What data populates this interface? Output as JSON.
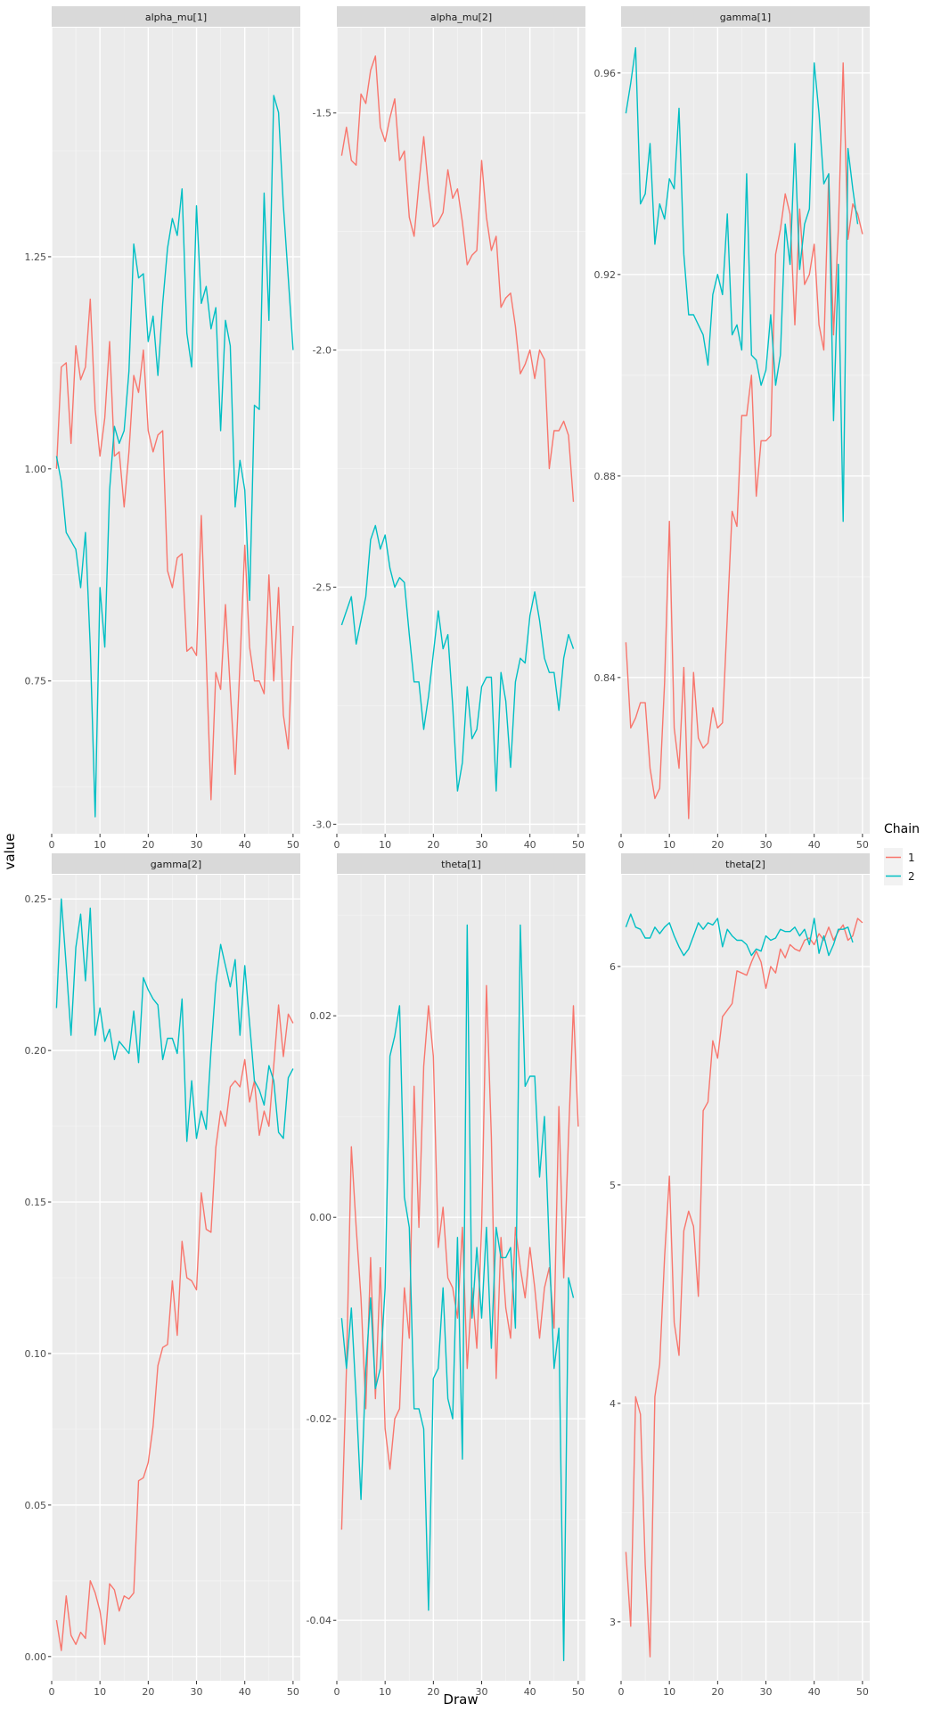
{
  "chart_data": {
    "type": "line",
    "layout": "facet grid, 2 rows x 3 columns, free y scales",
    "xlabel": "Draw",
    "ylabel": "value",
    "xlim": [
      1,
      50
    ],
    "x_ticks": [
      0,
      10,
      20,
      30,
      40,
      50
    ],
    "legend": {
      "title": "Chain",
      "position": "right",
      "entries": [
        "1",
        "2"
      ]
    },
    "series_colors": {
      "1": "#F8766D",
      "2": "#00BFC4"
    },
    "panel_background": "#EBEBEB",
    "strip_background": "#D9D9D9",
    "grid": true,
    "panels": [
      {
        "title": "alpha_mu[1]",
        "ylim": [
          0.57,
          1.52
        ],
        "y_ticks": [
          0.75,
          1.0,
          1.25
        ],
        "y_tick_labels": [
          "0.75",
          "1.00",
          "1.25"
        ],
        "series": [
          {
            "name": "1",
            "values": [
              1.0,
              1.12,
              1.125,
              1.03,
              1.145,
              1.105,
              1.12,
              1.2,
              1.07,
              1.015,
              1.06,
              1.15,
              1.015,
              1.02,
              0.955,
              1.02,
              1.11,
              1.09,
              1.14,
              1.045,
              1.02,
              1.04,
              1.045,
              0.88,
              0.86,
              0.895,
              0.9,
              0.785,
              0.79,
              0.78,
              0.945,
              0.78,
              0.61,
              0.76,
              0.74,
              0.84,
              0.74,
              0.64,
              0.77,
              0.91,
              0.79,
              0.75,
              0.75,
              0.735,
              0.875,
              0.75,
              0.86,
              0.71,
              0.67,
              0.815
            ]
          },
          {
            "name": "2",
            "values": [
              1.015,
              0.985,
              0.925,
              0.915,
              0.905,
              0.86,
              0.925,
              0.79,
              0.59,
              0.86,
              0.79,
              0.975,
              1.05,
              1.03,
              1.045,
              1.115,
              1.265,
              1.225,
              1.23,
              1.15,
              1.18,
              1.11,
              1.195,
              1.26,
              1.295,
              1.275,
              1.33,
              1.16,
              1.12,
              1.31,
              1.195,
              1.215,
              1.165,
              1.19,
              1.045,
              1.175,
              1.145,
              0.955,
              1.01,
              0.975,
              0.845,
              1.075,
              1.07,
              1.325,
              1.175,
              1.44,
              1.42,
              1.31,
              1.225,
              1.14
            ]
          }
        ]
      },
      {
        "title": "alpha_mu[2]",
        "ylim": [
          -3.02,
          -1.32
        ],
        "y_ticks": [
          -3.0,
          -2.5,
          -2.0,
          -1.5
        ],
        "y_tick_labels": [
          "-3.0",
          "-2.5",
          "-2.0",
          "-1.5"
        ],
        "series": [
          {
            "name": "1",
            "values": [
              -1.59,
              -1.53,
              -1.6,
              -1.61,
              -1.46,
              -1.48,
              -1.41,
              -1.38,
              -1.53,
              -1.56,
              -1.51,
              -1.47,
              -1.6,
              -1.58,
              -1.72,
              -1.76,
              -1.65,
              -1.55,
              -1.66,
              -1.74,
              -1.73,
              -1.71,
              -1.62,
              -1.68,
              -1.66,
              -1.73,
              -1.82,
              -1.8,
              -1.79,
              -1.6,
              -1.72,
              -1.79,
              -1.76,
              -1.91,
              -1.89,
              -1.88,
              -1.95,
              -2.05,
              -2.03,
              -2.0,
              -2.06,
              -2.0,
              -2.02,
              -2.25,
              -2.17,
              -2.17,
              -2.15,
              -2.18,
              -2.32
            ]
          },
          {
            "name": "2",
            "values": [
              -2.58,
              -2.55,
              -2.52,
              -2.62,
              -2.57,
              -2.52,
              -2.4,
              -2.37,
              -2.42,
              -2.39,
              -2.46,
              -2.5,
              -2.48,
              -2.49,
              -2.6,
              -2.7,
              -2.7,
              -2.8,
              -2.73,
              -2.64,
              -2.55,
              -2.63,
              -2.6,
              -2.75,
              -2.93,
              -2.87,
              -2.71,
              -2.82,
              -2.8,
              -2.71,
              -2.69,
              -2.69,
              -2.93,
              -2.68,
              -2.74,
              -2.88,
              -2.7,
              -2.65,
              -2.66,
              -2.56,
              -2.51,
              -2.57,
              -2.65,
              -2.68,
              -2.68,
              -2.76,
              -2.65,
              -2.6,
              -2.63
            ]
          }
        ]
      },
      {
        "title": "gamma[1]",
        "ylim": [
          0.809,
          0.969
        ],
        "y_ticks": [
          0.84,
          0.88,
          0.92,
          0.96
        ],
        "y_tick_labels": [
          "0.84",
          "0.88",
          "0.92",
          "0.96"
        ],
        "series": [
          {
            "name": "1",
            "values": [
              0.847,
              0.83,
              0.832,
              0.835,
              0.835,
              0.822,
              0.816,
              0.818,
              0.839,
              0.871,
              0.83,
              0.822,
              0.842,
              0.812,
              0.841,
              0.828,
              0.826,
              0.827,
              0.834,
              0.83,
              0.831,
              0.852,
              0.873,
              0.87,
              0.892,
              0.892,
              0.9,
              0.876,
              0.887,
              0.887,
              0.888,
              0.924,
              0.929,
              0.936,
              0.932,
              0.91,
              0.933,
              0.918,
              0.92,
              0.926,
              0.91,
              0.905,
              0.94,
              0.908,
              0.929,
              0.962,
              0.927,
              0.934,
              0.932,
              0.928
            ]
          },
          {
            "name": "2",
            "values": [
              0.952,
              0.958,
              0.965,
              0.934,
              0.936,
              0.946,
              0.926,
              0.934,
              0.931,
              0.939,
              0.937,
              0.953,
              0.924,
              0.912,
              0.912,
              0.91,
              0.908,
              0.902,
              0.916,
              0.92,
              0.916,
              0.932,
              0.908,
              0.91,
              0.905,
              0.94,
              0.904,
              0.903,
              0.898,
              0.901,
              0.912,
              0.898,
              0.904,
              0.93,
              0.922,
              0.946,
              0.921,
              0.93,
              0.933,
              0.962,
              0.952,
              0.938,
              0.94,
              0.891,
              0.922,
              0.871,
              0.945,
              0.937,
              0.93
            ]
          }
        ]
      },
      {
        "title": "gamma[2]",
        "ylim": [
          -0.008,
          0.258
        ],
        "y_ticks": [
          0.0,
          0.05,
          0.1,
          0.15,
          0.2,
          0.25
        ],
        "y_tick_labels": [
          "0.00",
          "0.05",
          "0.10",
          "0.15",
          "0.20",
          "0.25"
        ],
        "series": [
          {
            "name": "1",
            "values": [
              0.012,
              0.002,
              0.02,
              0.007,
              0.004,
              0.008,
              0.006,
              0.025,
              0.021,
              0.015,
              0.004,
              0.024,
              0.022,
              0.015,
              0.02,
              0.019,
              0.021,
              0.058,
              0.059,
              0.064,
              0.076,
              0.096,
              0.102,
              0.103,
              0.124,
              0.106,
              0.137,
              0.125,
              0.124,
              0.121,
              0.153,
              0.141,
              0.14,
              0.168,
              0.18,
              0.175,
              0.188,
              0.19,
              0.188,
              0.197,
              0.183,
              0.19,
              0.172,
              0.18,
              0.175,
              0.195,
              0.215,
              0.198,
              0.212,
              0.209
            ]
          },
          {
            "name": "2",
            "values": [
              0.214,
              0.25,
              0.228,
              0.205,
              0.234,
              0.245,
              0.223,
              0.247,
              0.205,
              0.214,
              0.203,
              0.207,
              0.197,
              0.203,
              0.201,
              0.199,
              0.213,
              0.196,
              0.224,
              0.22,
              0.217,
              0.215,
              0.197,
              0.204,
              0.204,
              0.199,
              0.217,
              0.17,
              0.19,
              0.171,
              0.18,
              0.174,
              0.2,
              0.222,
              0.235,
              0.228,
              0.221,
              0.23,
              0.205,
              0.228,
              0.209,
              0.19,
              0.187,
              0.182,
              0.195,
              0.19,
              0.173,
              0.171,
              0.191,
              0.194
            ]
          }
        ]
      },
      {
        "title": "theta[1]",
        "ylim": [
          -0.046,
          0.034
        ],
        "y_ticks": [
          -0.04,
          -0.02,
          0.0,
          0.02
        ],
        "y_tick_labels": [
          "-0.04",
          "-0.02",
          "0.00",
          "0.02"
        ],
        "series": [
          {
            "name": "1",
            "values": [
              -0.031,
              -0.015,
              0.007,
              -0.001,
              -0.008,
              -0.019,
              -0.004,
              -0.018,
              -0.005,
              -0.021,
              -0.025,
              -0.02,
              -0.019,
              -0.007,
              -0.012,
              0.013,
              -0.001,
              0.015,
              0.021,
              0.016,
              -0.003,
              0.001,
              -0.006,
              -0.007,
              -0.01,
              -0.001,
              -0.015,
              -0.007,
              -0.013,
              -0.001,
              0.023,
              0.008,
              -0.016,
              -0.002,
              -0.009,
              -0.012,
              -0.001,
              -0.005,
              -0.008,
              -0.003,
              -0.007,
              -0.012,
              -0.007,
              -0.005,
              -0.011,
              0.011,
              -0.006,
              0.008,
              0.021,
              0.009
            ]
          },
          {
            "name": "2",
            "values": [
              -0.01,
              -0.015,
              -0.009,
              -0.018,
              -0.028,
              -0.015,
              -0.008,
              -0.017,
              -0.015,
              -0.007,
              0.016,
              0.018,
              0.021,
              0.002,
              -0.001,
              -0.019,
              -0.019,
              -0.021,
              -0.039,
              -0.016,
              -0.015,
              -0.007,
              -0.018,
              -0.02,
              -0.002,
              -0.024,
              0.029,
              -0.01,
              -0.003,
              -0.01,
              -0.001,
              -0.013,
              -0.001,
              -0.004,
              -0.004,
              -0.003,
              -0.011,
              0.029,
              0.013,
              0.014,
              0.014,
              0.004,
              0.01,
              -0.003,
              -0.015,
              -0.011,
              -0.044,
              -0.006,
              -0.008
            ]
          }
        ]
      },
      {
        "title": "theta[2]",
        "ylim": [
          2.73,
          6.42
        ],
        "y_ticks": [
          3,
          4,
          5,
          6
        ],
        "y_tick_labels": [
          "3",
          "4",
          "5",
          "6"
        ],
        "series": [
          {
            "name": "1",
            "values": [
              3.32,
              2.98,
              4.03,
              3.95,
              3.26,
              2.84,
              4.03,
              4.18,
              4.67,
              5.04,
              4.37,
              4.22,
              4.79,
              4.88,
              4.81,
              4.49,
              5.34,
              5.38,
              5.66,
              5.58,
              5.77,
              5.8,
              5.83,
              5.98,
              5.97,
              5.96,
              6.02,
              6.07,
              6.02,
              5.9,
              6.0,
              5.97,
              6.08,
              6.04,
              6.1,
              6.08,
              6.07,
              6.12,
              6.13,
              6.1,
              6.15,
              6.12,
              6.18,
              6.12,
              6.16,
              6.19,
              6.12,
              6.14,
              6.22,
              6.2
            ]
          },
          {
            "name": "2",
            "values": [
              6.18,
              6.24,
              6.18,
              6.17,
              6.13,
              6.13,
              6.18,
              6.15,
              6.18,
              6.2,
              6.14,
              6.09,
              6.05,
              6.08,
              6.14,
              6.2,
              6.17,
              6.2,
              6.19,
              6.22,
              6.09,
              6.17,
              6.14,
              6.12,
              6.12,
              6.1,
              6.05,
              6.08,
              6.07,
              6.14,
              6.12,
              6.13,
              6.17,
              6.16,
              6.16,
              6.18,
              6.14,
              6.17,
              6.1,
              6.22,
              6.06,
              6.14,
              6.05,
              6.1,
              6.17,
              6.17,
              6.18,
              6.11
            ]
          }
        ]
      }
    ]
  }
}
